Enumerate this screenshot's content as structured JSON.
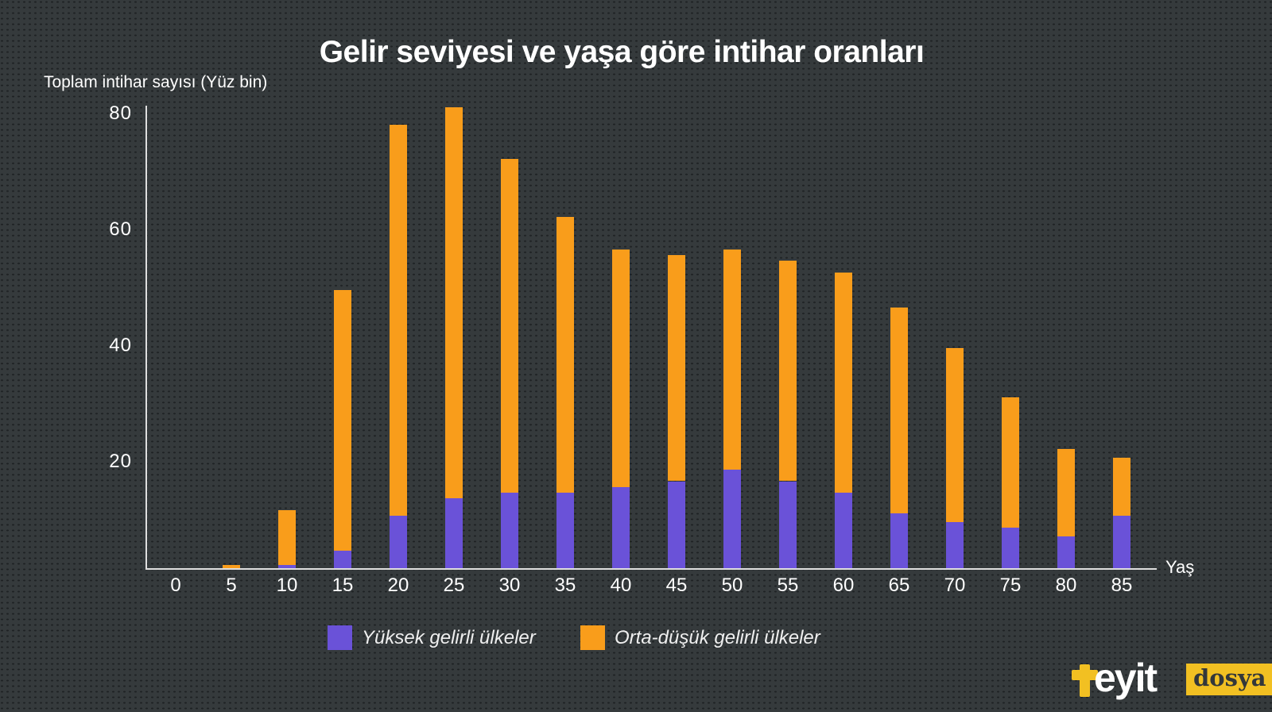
{
  "title": "Gelir seviyesi ve yaşa göre intihar oranları",
  "y_axis": {
    "label": "Toplam intihar sayısı (Yüz bin)",
    "ticks": [
      80,
      60,
      40,
      20
    ]
  },
  "x_axis": {
    "label": "Yaş"
  },
  "logo": {
    "brand": "teyit",
    "brand_rest": "eyit",
    "badge": "dosya",
    "yellow": "#f2c022",
    "badge_text_color": "#33373a"
  },
  "chart_data": {
    "type": "bar",
    "stacked": true,
    "title": "Gelir seviyesi ve yaşa göre intihar oranları",
    "xlabel": "Yaş",
    "ylabel": "Toplam intihar sayısı (Yüz bin)",
    "ylim": [
      0,
      80
    ],
    "grid": false,
    "legend_position": "bottom",
    "categories": [
      0,
      5,
      10,
      15,
      20,
      25,
      30,
      35,
      40,
      45,
      50,
      55,
      60,
      65,
      70,
      75,
      80,
      85
    ],
    "series": [
      {
        "name": "Yüksek gelirli ülkeler",
        "color": "#6a52d8",
        "values": [
          0,
          0,
          0.5,
          3,
          9,
          12,
          13,
          13,
          14,
          15,
          17,
          15,
          13,
          9.5,
          8,
          7,
          5.5,
          9
        ]
      },
      {
        "name": "Orta-düşük gelirli ülkeler",
        "color": "#f99d1b",
        "values": [
          0,
          0.5,
          9.5,
          45,
          67.5,
          67.5,
          57.5,
          47.5,
          41,
          39,
          38,
          38,
          38,
          35.5,
          30,
          22.5,
          15,
          10
        ]
      }
    ]
  }
}
